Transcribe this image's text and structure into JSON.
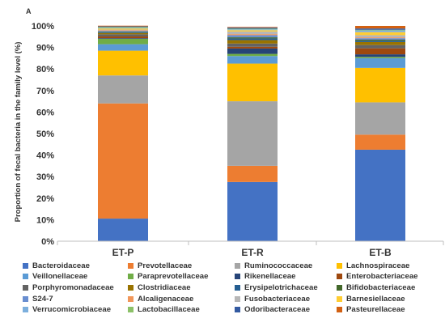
{
  "chart_data": {
    "type": "bar",
    "stacked": true,
    "panel_label": "A",
    "ylabel": "Proportion of fecal bacteria in the family level (%)",
    "xlabel": "",
    "ylim": [
      0,
      100
    ],
    "yticks": [
      "0%",
      "10%",
      "20%",
      "30%",
      "40%",
      "50%",
      "60%",
      "70%",
      "80%",
      "90%",
      "100%"
    ],
    "categories": [
      "ET-P",
      "ET-R",
      "ET-B"
    ],
    "legend_position": "bottom",
    "series": [
      {
        "name": "Bacteroidaceae",
        "color": "#4472c4",
        "values": [
          10.5,
          27.5,
          42.5
        ]
      },
      {
        "name": "Prevotellaceae",
        "color": "#ed7d31",
        "values": [
          53.5,
          7.5,
          7.0
        ]
      },
      {
        "name": "Ruminococcaceae",
        "color": "#a5a5a5",
        "values": [
          13.0,
          30.0,
          15.0
        ]
      },
      {
        "name": "Lachnospiraceae",
        "color": "#ffc000",
        "values": [
          11.5,
          17.5,
          16.0
        ]
      },
      {
        "name": "Veillonellaceae",
        "color": "#5b9bd5",
        "values": [
          3.0,
          3.5,
          4.5
        ]
      },
      {
        "name": "Paraprevotellaceae",
        "color": "#70ad47",
        "values": [
          2.5,
          1.0,
          0.6
        ]
      },
      {
        "name": "Rikenellaceae",
        "color": "#264478",
        "values": [
          0.3,
          2.5,
          1.2
        ]
      },
      {
        "name": "Enterobacteriaceae",
        "color": "#9e480e",
        "values": [
          0.8,
          0.8,
          2.8
        ]
      },
      {
        "name": "Porphyromonadaceae",
        "color": "#636363",
        "values": [
          1.0,
          1.5,
          1.5
        ]
      },
      {
        "name": "Clostridiaceae",
        "color": "#997300",
        "values": [
          0.6,
          1.6,
          1.4
        ]
      },
      {
        "name": "Erysipelotrichaceae",
        "color": "#255e91",
        "values": [
          0.3,
          0.8,
          0.6
        ]
      },
      {
        "name": "Bifidobacteriaceae",
        "color": "#43682b",
        "values": [
          0.3,
          0.5,
          0.5
        ]
      },
      {
        "name": "S24-7",
        "color": "#698ed0",
        "values": [
          0.4,
          1.0,
          0.7
        ]
      },
      {
        "name": "Alcaligenaceae",
        "color": "#f1975a",
        "values": [
          0.3,
          0.5,
          0.4
        ]
      },
      {
        "name": "Fusobacteriaceae",
        "color": "#b7b7b7",
        "values": [
          0.3,
          1.2,
          1.0
        ]
      },
      {
        "name": "Barnesiellaceae",
        "color": "#ffcd33",
        "values": [
          0.5,
          0.6,
          1.4
        ]
      },
      {
        "name": "Verrucomicrobiaceae",
        "color": "#7cafdd",
        "values": [
          0.3,
          0.4,
          0.8
        ]
      },
      {
        "name": "Lactobacillaceae",
        "color": "#8cc168",
        "values": [
          0.4,
          0.3,
          0.3
        ]
      },
      {
        "name": "Odoribacteraceae",
        "color": "#335aa1",
        "values": [
          0.3,
          0.5,
          0.6
        ]
      },
      {
        "name": "Pasteurellaceae",
        "color": "#d26012",
        "values": [
          0.3,
          0.3,
          1.2
        ]
      }
    ]
  }
}
